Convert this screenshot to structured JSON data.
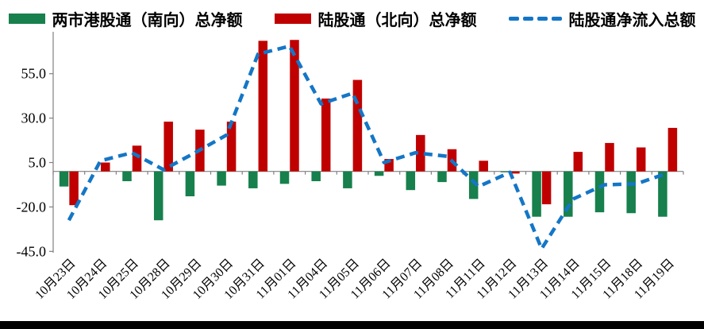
{
  "legend": {
    "items": [
      {
        "label": "两市港股通（南向）总净额",
        "color": "#17804C",
        "marker": "bar"
      },
      {
        "label": "陆股通（北向）总净额",
        "color": "#C00000",
        "marker": "bar"
      },
      {
        "label": "陆股通净流入总额",
        "color": "#1476C6",
        "marker": "dash"
      }
    ]
  },
  "chart_data": {
    "type": "bar",
    "title": "",
    "xlabel": "",
    "ylabel": "",
    "categories": [
      "10月23日",
      "10月24日",
      "10月25日",
      "10月28日",
      "10月29日",
      "10月30日",
      "10月31日",
      "11月01日",
      "11月04日",
      "11月05日",
      "11月06日",
      "11月07日",
      "11月08日",
      "11月11日",
      "11月12日",
      "11月13日",
      "11月14日",
      "11月15日",
      "11月18日",
      "11月19日"
    ],
    "series": [
      {
        "name": "两市港股通（南向）总净额",
        "type": "bar",
        "color": "#17804C",
        "values": [
          -8.5,
          0,
          -5.5,
          -27.5,
          -14,
          -8,
          -9.5,
          -7,
          -5.5,
          -9.5,
          -2.5,
          -10.5,
          -6,
          -15.5,
          -0.5,
          -25.5,
          -25.5,
          -23,
          -23.5,
          -25.5
        ]
      },
      {
        "name": "陆股通（北向）总净额",
        "type": "bar",
        "color": "#C00000",
        "values": [
          -19,
          5,
          14.5,
          28,
          23.5,
          28,
          73.5,
          74,
          41,
          51.5,
          7,
          20.5,
          12.5,
          6,
          -1.2,
          -18.5,
          11,
          16,
          13.5,
          24.5
        ]
      },
      {
        "name": "陆股通净流入总额",
        "type": "line",
        "line_style": "dashed",
        "color": "#1476C6",
        "values": [
          -27.5,
          6,
          10.5,
          1,
          10.5,
          20.5,
          66,
          70.5,
          38,
          44,
          5,
          10.5,
          8.5,
          -8.5,
          -0.5,
          -43.5,
          -15.5,
          -7.5,
          -7,
          -1
        ]
      }
    ],
    "ytick_values": [
      55,
      30,
      5,
      -20,
      -45
    ],
    "ytick_labels": [
      "55.0",
      "30.0",
      "5.0",
      "-20.0",
      "-45.0"
    ],
    "ylim": [
      -45.8,
      78.6
    ],
    "grid": false,
    "legend_position": "top",
    "axis_color": "#808080",
    "text_color": "#000000"
  }
}
